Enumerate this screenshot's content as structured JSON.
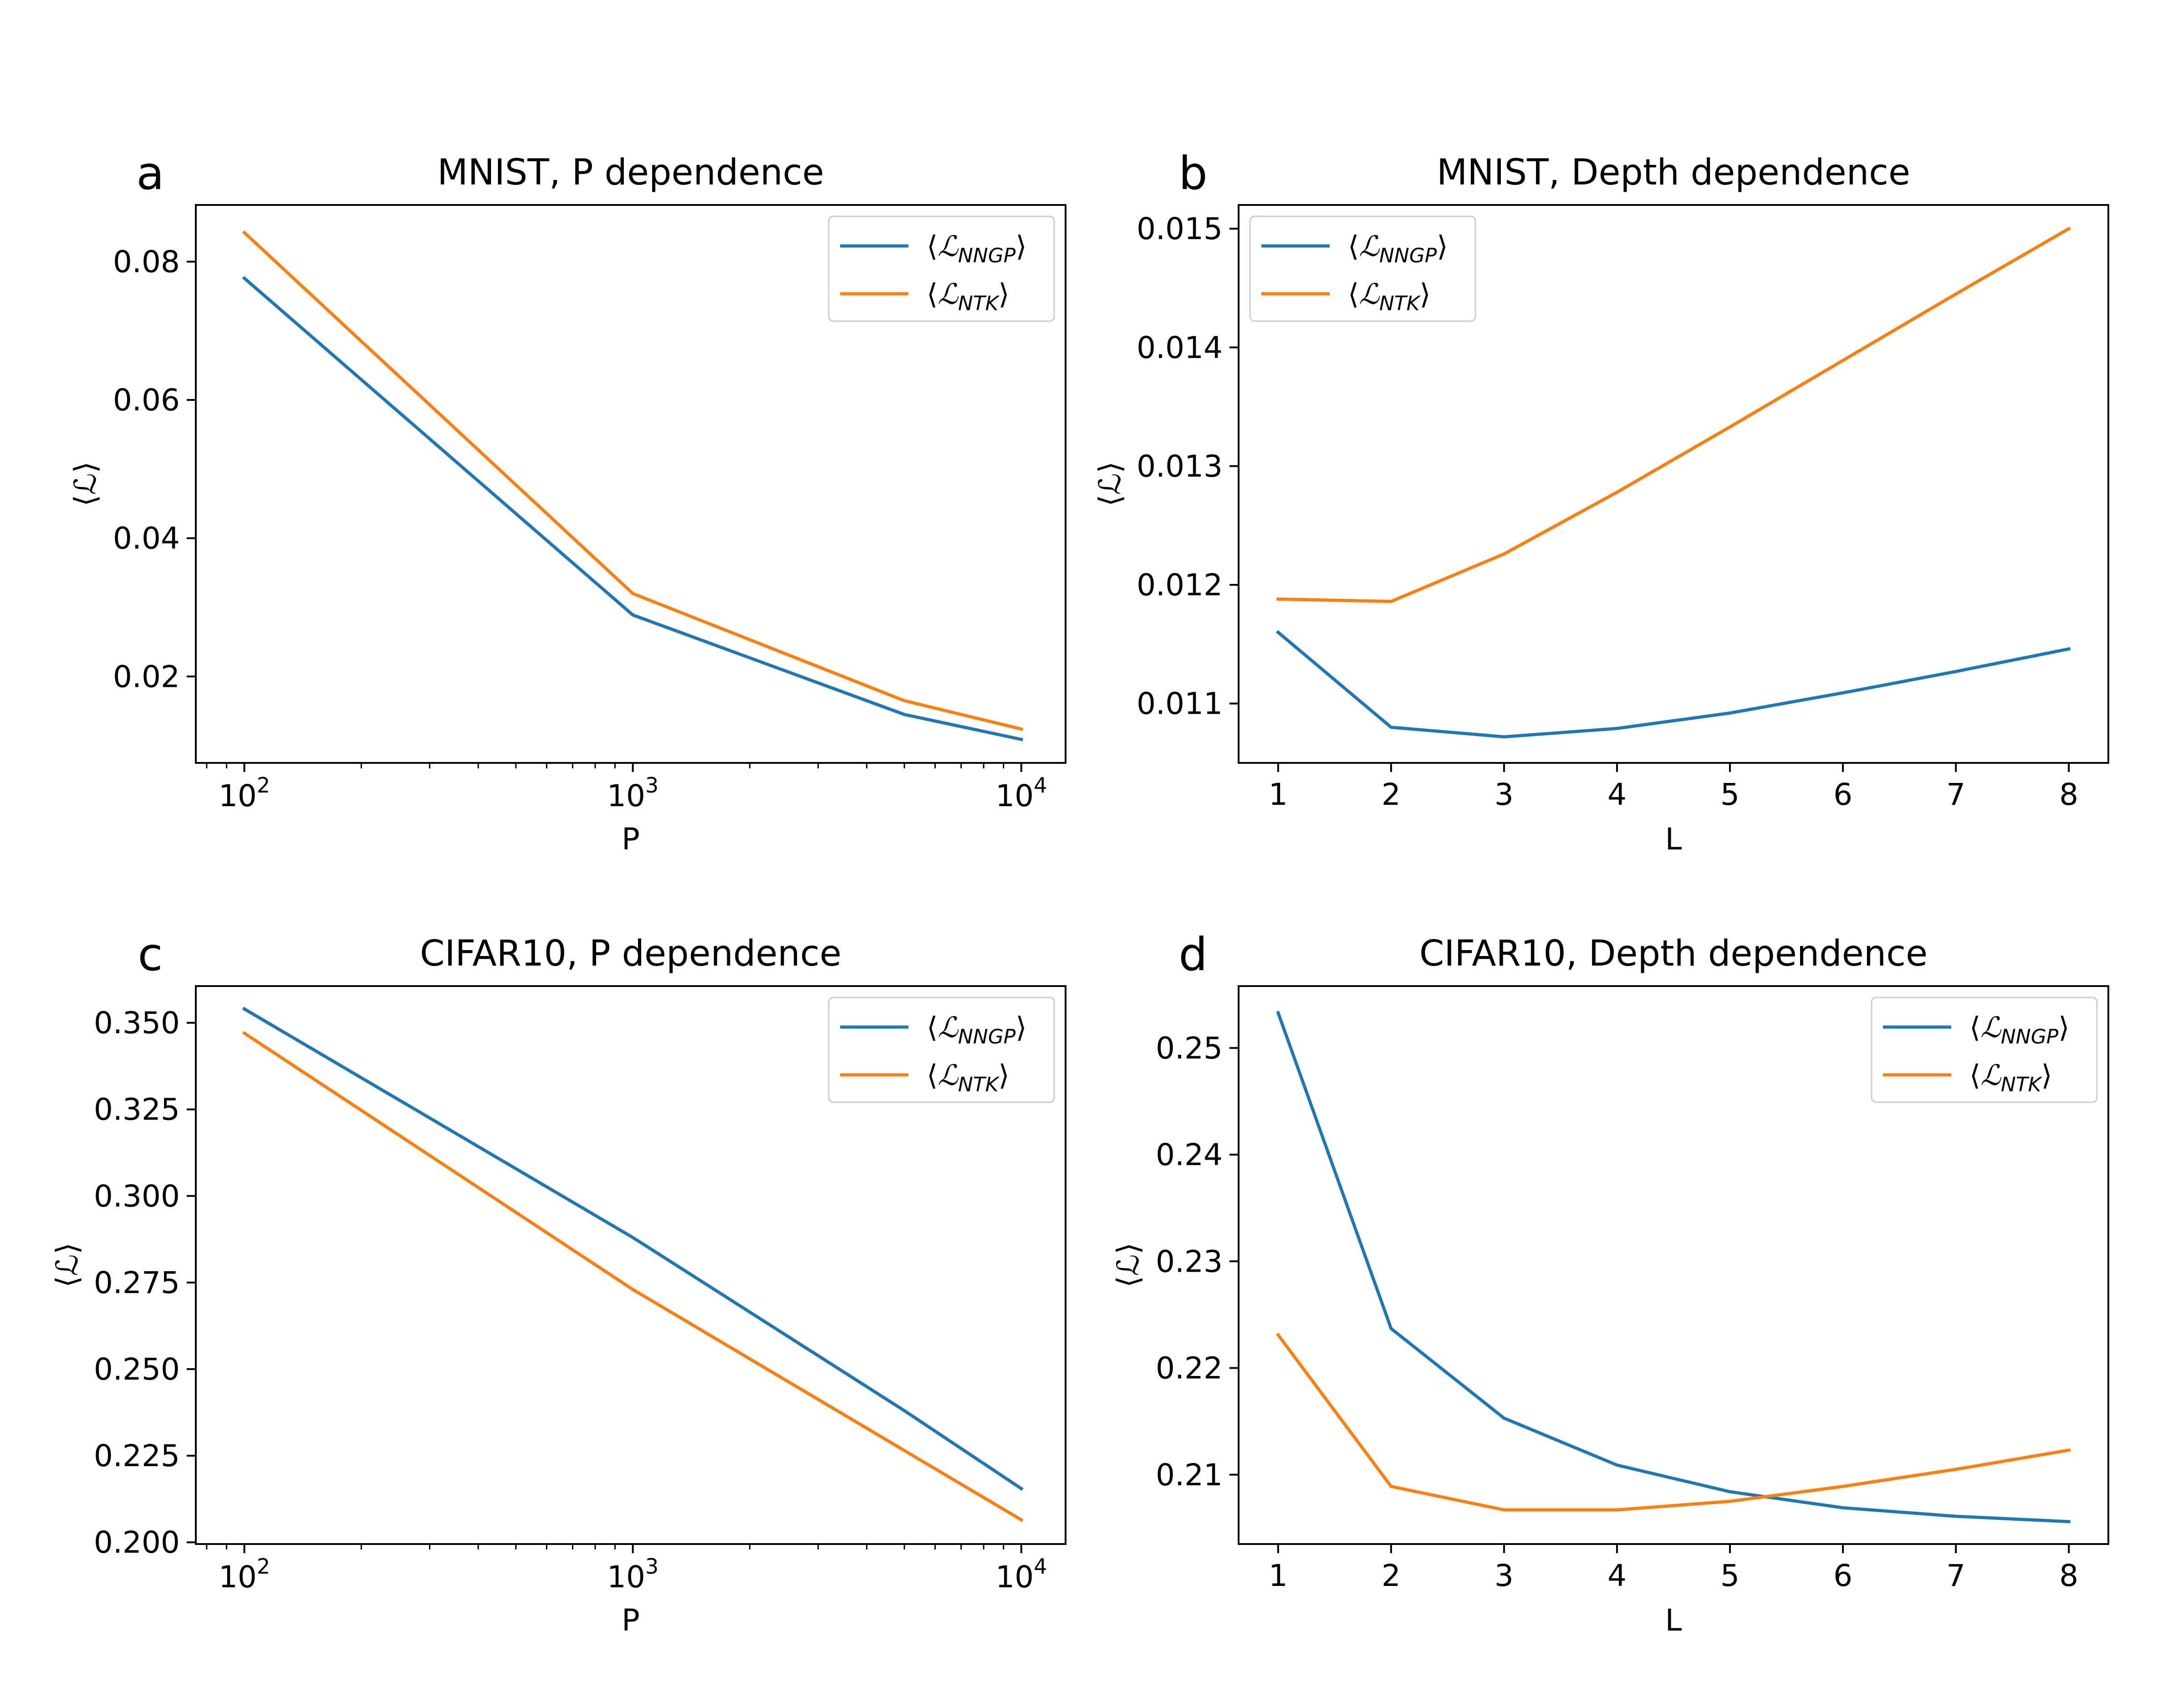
{
  "colors": {
    "nngp": "#1f77b4",
    "ntk": "#ff7f0e"
  },
  "chart_data": [
    {
      "id": "a",
      "letter": "a",
      "type": "line",
      "title": "MNIST, P dependence",
      "xlabel": "P",
      "ylabel": "⟨ℒ⟩",
      "xscale": "log",
      "xlim": [
        75,
        13000
      ],
      "ylim": [
        0.0075,
        0.0882
      ],
      "xticks": [
        {
          "base": "10",
          "exp": "2",
          "value": 100
        },
        {
          "base": "10",
          "exp": "3",
          "value": 1000
        },
        {
          "base": "10",
          "exp": "4",
          "value": 10000
        }
      ],
      "yticks": [
        {
          "label": "0.02",
          "value": 0.02
        },
        {
          "label": "0.04",
          "value": 0.04
        },
        {
          "label": "0.06",
          "value": 0.06
        },
        {
          "label": "0.08",
          "value": 0.08
        }
      ],
      "legend_loc": "upper right",
      "series": [
        {
          "name": "NNGP",
          "legend_main": "ℒ",
          "legend_sub": "NNGP",
          "x": [
            100,
            1000,
            5000,
            10000
          ],
          "values": [
            0.0776,
            0.0289,
            0.0145,
            0.0109
          ]
        },
        {
          "name": "NTK",
          "legend_main": "ℒ",
          "legend_sub": "NTK",
          "x": [
            100,
            1000,
            5000,
            10000
          ],
          "values": [
            0.0842,
            0.032,
            0.0165,
            0.0124
          ]
        }
      ]
    },
    {
      "id": "b",
      "letter": "b",
      "type": "line",
      "title": "MNIST, Depth dependence",
      "xlabel": "L",
      "ylabel": "⟨ℒ⟩",
      "xscale": "linear",
      "xlim": [
        0.65,
        8.35
      ],
      "ylim": [
        0.0105,
        0.0152
      ],
      "xticks": [
        {
          "label": "1",
          "value": 1
        },
        {
          "label": "2",
          "value": 2
        },
        {
          "label": "3",
          "value": 3
        },
        {
          "label": "4",
          "value": 4
        },
        {
          "label": "5",
          "value": 5
        },
        {
          "label": "6",
          "value": 6
        },
        {
          "label": "7",
          "value": 7
        },
        {
          "label": "8",
          "value": 8
        }
      ],
      "yticks": [
        {
          "label": "0.011",
          "value": 0.011
        },
        {
          "label": "0.012",
          "value": 0.012
        },
        {
          "label": "0.013",
          "value": 0.013
        },
        {
          "label": "0.014",
          "value": 0.014
        },
        {
          "label": "0.015",
          "value": 0.015
        }
      ],
      "legend_loc": "upper left",
      "series": [
        {
          "name": "NNGP",
          "legend_main": "ℒ",
          "legend_sub": "NNGP",
          "x": [
            1,
            2,
            3,
            4,
            5,
            6,
            7,
            8
          ],
          "values": [
            0.0116,
            0.0108,
            0.01072,
            0.01079,
            0.01092,
            0.01109,
            0.01127,
            0.01146
          ]
        },
        {
          "name": "NTK",
          "legend_main": "ℒ",
          "legend_sub": "NTK",
          "x": [
            1,
            2,
            3,
            4,
            5,
            6,
            7,
            8
          ],
          "values": [
            0.01188,
            0.01186,
            0.01226,
            0.01278,
            0.01333,
            0.01389,
            0.01445,
            0.015
          ]
        }
      ]
    },
    {
      "id": "c",
      "letter": "c",
      "type": "line",
      "title": "CIFAR10, P dependence",
      "xlabel": "P",
      "ylabel": "⟨ℒ⟩",
      "xscale": "log",
      "xlim": [
        75,
        13000
      ],
      "ylim": [
        0.1995,
        0.3606
      ],
      "xticks": [
        {
          "base": "10",
          "exp": "2",
          "value": 100
        },
        {
          "base": "10",
          "exp": "3",
          "value": 1000
        },
        {
          "base": "10",
          "exp": "4",
          "value": 10000
        }
      ],
      "yticks": [
        {
          "label": "0.200",
          "value": 0.2
        },
        {
          "label": "0.225",
          "value": 0.225
        },
        {
          "label": "0.250",
          "value": 0.25
        },
        {
          "label": "0.275",
          "value": 0.275
        },
        {
          "label": "0.300",
          "value": 0.3
        },
        {
          "label": "0.325",
          "value": 0.325
        },
        {
          "label": "0.350",
          "value": 0.35
        }
      ],
      "legend_loc": "upper right",
      "series": [
        {
          "name": "NNGP",
          "legend_main": "ℒ",
          "legend_sub": "NNGP",
          "x": [
            100,
            1000,
            5000,
            10000
          ],
          "values": [
            0.354,
            0.288,
            0.238,
            0.2155
          ]
        },
        {
          "name": "NTK",
          "legend_main": "ℒ",
          "legend_sub": "NTK",
          "x": [
            100,
            1000,
            5000,
            10000
          ],
          "values": [
            0.347,
            0.273,
            0.2265,
            0.2065
          ]
        }
      ]
    },
    {
      "id": "d",
      "letter": "d",
      "type": "line",
      "title": "CIFAR10, Depth dependence",
      "xlabel": "L",
      "ylabel": "⟨ℒ⟩",
      "xscale": "linear",
      "xlim": [
        0.65,
        8.35
      ],
      "ylim": [
        0.2035,
        0.2558
      ],
      "xticks": [
        {
          "label": "1",
          "value": 1
        },
        {
          "label": "2",
          "value": 2
        },
        {
          "label": "3",
          "value": 3
        },
        {
          "label": "4",
          "value": 4
        },
        {
          "label": "5",
          "value": 5
        },
        {
          "label": "6",
          "value": 6
        },
        {
          "label": "7",
          "value": 7
        },
        {
          "label": "8",
          "value": 8
        }
      ],
      "yticks": [
        {
          "label": "0.21",
          "value": 0.21
        },
        {
          "label": "0.22",
          "value": 0.22
        },
        {
          "label": "0.23",
          "value": 0.23
        },
        {
          "label": "0.24",
          "value": 0.24
        },
        {
          "label": "0.25",
          "value": 0.25
        }
      ],
      "legend_loc": "upper right",
      "series": [
        {
          "name": "NNGP",
          "legend_main": "ℒ",
          "legend_sub": "NNGP",
          "x": [
            1,
            2,
            3,
            4,
            5,
            6,
            7,
            8
          ],
          "values": [
            0.2533,
            0.2237,
            0.2153,
            0.2109,
            0.2084,
            0.2069,
            0.2061,
            0.2056
          ]
        },
        {
          "name": "NTK",
          "legend_main": "ℒ",
          "legend_sub": "NTK",
          "x": [
            1,
            2,
            3,
            4,
            5,
            6,
            7,
            8
          ],
          "values": [
            0.2231,
            0.2089,
            0.2067,
            0.2067,
            0.2075,
            0.2089,
            0.2105,
            0.2123
          ]
        }
      ]
    }
  ]
}
